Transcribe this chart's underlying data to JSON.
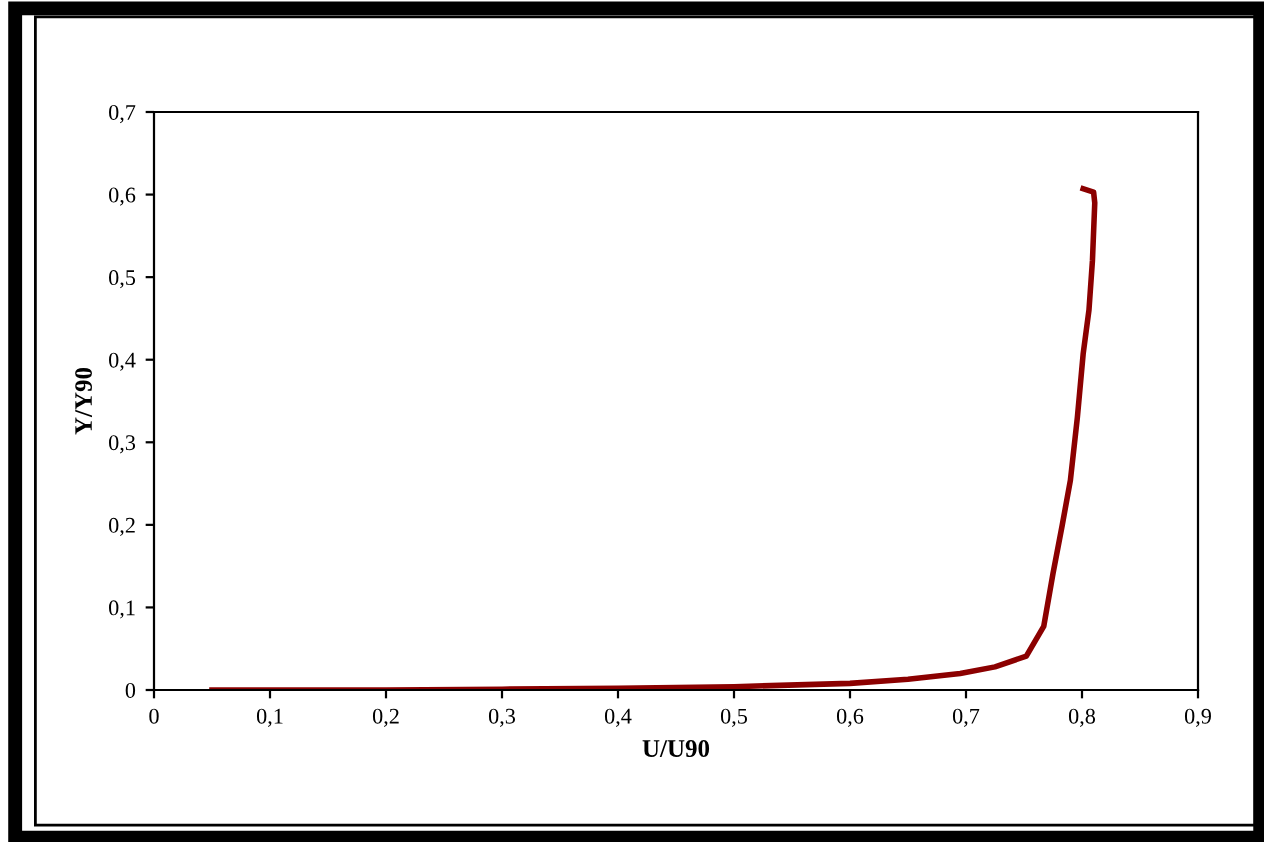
{
  "chart_data": {
    "type": "line",
    "xlabel": "U/U90",
    "ylabel": "Y/Y90",
    "series": [
      {
        "color": "#8b0000",
        "x": [
          0.05,
          0.1,
          0.2,
          0.3,
          0.4,
          0.5,
          0.6,
          0.65,
          0.695,
          0.725,
          0.752,
          0.767,
          0.775,
          0.783,
          0.79,
          0.796,
          0.801,
          0.806,
          0.809,
          0.811,
          0.81,
          0.801
        ],
        "values": [
          0,
          0,
          0,
          0.001,
          0.002,
          0.004,
          0.008,
          0.013,
          0.02,
          0.028,
          0.041,
          0.077,
          0.141,
          0.2,
          0.254,
          0.33,
          0.407,
          0.46,
          0.52,
          0.59,
          0.603,
          0.607
        ]
      }
    ],
    "xlim": [
      0,
      0.9
    ],
    "xticks": [
      {
        "value": 0,
        "label": "0"
      },
      {
        "value": 0.1,
        "label": "0,1"
      },
      {
        "value": 0.2,
        "label": "0,2"
      },
      {
        "value": 0.3,
        "label": "0,3"
      },
      {
        "value": 0.4,
        "label": "0,4"
      },
      {
        "value": 0.5,
        "label": "0,5"
      },
      {
        "value": 0.6,
        "label": "0,6"
      },
      {
        "value": 0.7,
        "label": "0,7"
      },
      {
        "value": 0.8,
        "label": "0,8"
      },
      {
        "value": 0.9,
        "label": "0,9"
      }
    ],
    "ylim": [
      0,
      0.7
    ],
    "yticks": [
      {
        "value": 0,
        "label": "0"
      },
      {
        "value": 0.1,
        "label": "0,1"
      },
      {
        "value": 0.2,
        "label": "0,2"
      },
      {
        "value": 0.3,
        "label": "0,3"
      },
      {
        "value": 0.4,
        "label": "0,4"
      },
      {
        "value": 0.5,
        "label": "0,5"
      },
      {
        "value": 0.6,
        "label": "0,6"
      },
      {
        "value": 0.7,
        "label": "0,7"
      }
    ],
    "grid": false,
    "legend": false,
    "marker": "none",
    "line_style": "solid"
  }
}
